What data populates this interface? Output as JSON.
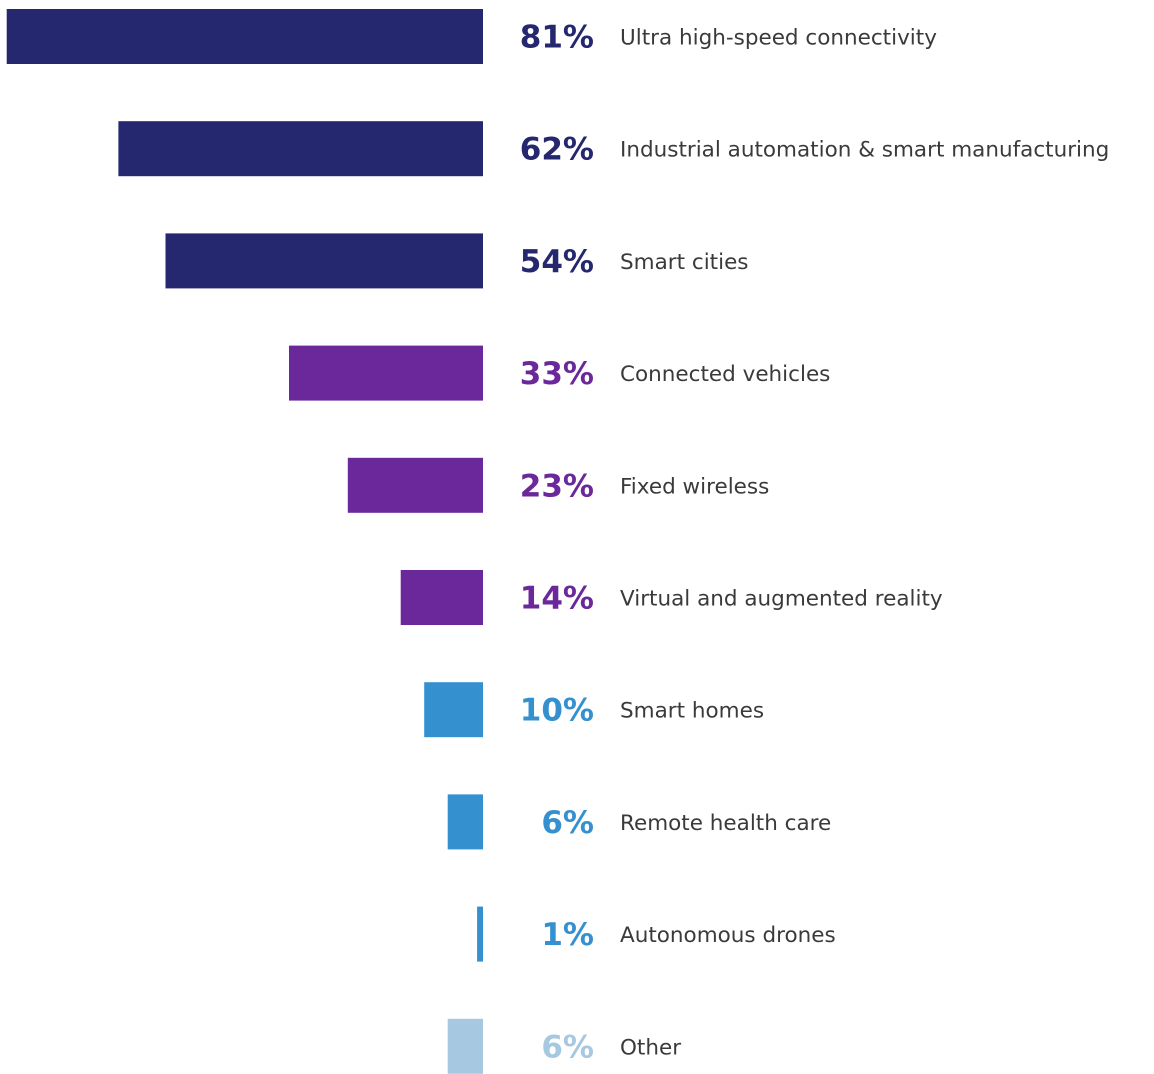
{
  "chart_data": {
    "type": "bar",
    "orientation": "horizontal",
    "categories": [
      "Ultra high-speed connectivity",
      "Industrial automation & smart manufacturing",
      "Smart cities",
      "Connected vehicles",
      "Fixed wireless",
      "Virtual and augmented reality",
      "Smart homes",
      "Remote health care",
      "Autonomous drones",
      "Other"
    ],
    "values": [
      81,
      62,
      54,
      33,
      23,
      14,
      10,
      6,
      1,
      6
    ],
    "value_labels": [
      "81%",
      "62%",
      "54%",
      "33%",
      "23%",
      "14%",
      "10%",
      "6%",
      "1%",
      "6%"
    ],
    "colors": [
      "#25276f",
      "#25276f",
      "#25276f",
      "#6b289b",
      "#6b289b",
      "#6b289b",
      "#3590d0",
      "#3590d0",
      "#3590d0",
      "#a6c8e1"
    ],
    "unit": "%",
    "bars_extend": "leftward",
    "grid": false,
    "legend": "none"
  }
}
